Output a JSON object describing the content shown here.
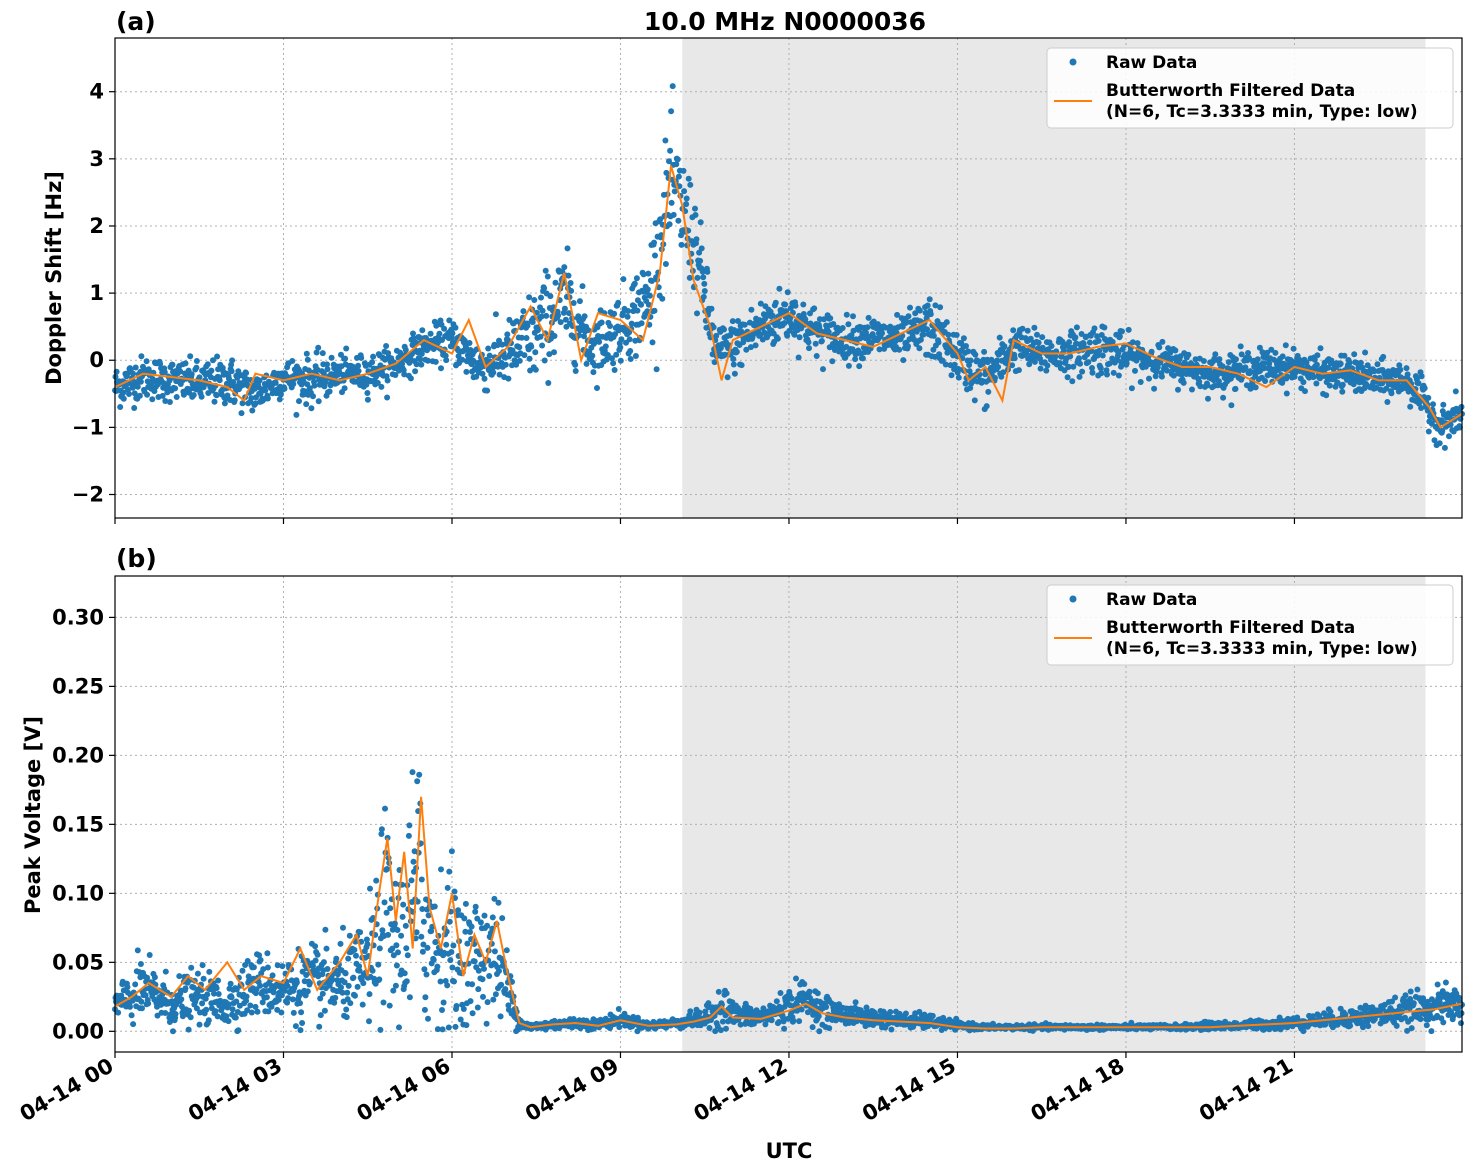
{
  "figure": {
    "title": "10.0 MHz N0000036",
    "xlabel": "UTC"
  },
  "legend": {
    "raw": "Raw Data",
    "filtered_line1": "Butterworth Filtered Data",
    "filtered_line2": "(N=6, Tc=3.3333 min, Type: low)"
  },
  "colors": {
    "raw": "#1f77b4",
    "filtered": "#ff7f0e",
    "shade": "#e8e8e8",
    "grid": "#b0b0b0"
  },
  "chart_data": [
    {
      "type": "scatter",
      "panel_label": "(a)",
      "title": "10.0 MHz N0000036",
      "xlabel": "",
      "ylabel": "Doppler Shift [Hz]",
      "xlim": [
        "04-14 00:00",
        "04-14 23:59"
      ],
      "ylim": [
        -2.35,
        4.8
      ],
      "yticks": [
        -2,
        -1,
        0,
        1,
        2,
        3,
        4
      ],
      "ytick_labels": [
        "−2",
        "−1",
        "0",
        "1",
        "2",
        "3",
        "4"
      ],
      "xticks": [
        "04-14 00",
        "04-14 03",
        "04-14 06",
        "04-14 09",
        "04-14 12",
        "04-14 15",
        "04-14 18",
        "04-14 21"
      ],
      "shaded_interval": [
        "04-14 10:06",
        "04-14 23:20"
      ],
      "grid": true,
      "legend_position": "upper right",
      "series": [
        {
          "name": "Raw Data",
          "style": "points",
          "x_hours": [
            0,
            0.5,
            1,
            1.5,
            2,
            2.5,
            3,
            3.5,
            4,
            4.5,
            5,
            5.5,
            6,
            6.5,
            7,
            7.5,
            8,
            8.5,
            9,
            9.5,
            9.9,
            10.3,
            10.7,
            11,
            11.5,
            12,
            12.5,
            13,
            13.5,
            14,
            14.5,
            15,
            15.5,
            16,
            16.5,
            17,
            17.5,
            18,
            18.5,
            19,
            19.5,
            20,
            20.5,
            21,
            21.5,
            22,
            22.5,
            23,
            23.3,
            23.6,
            23.98
          ],
          "y": [
            -0.4,
            -0.25,
            -0.3,
            -0.35,
            -0.3,
            -0.5,
            -0.25,
            -0.3,
            -0.2,
            -0.2,
            -0.05,
            0.2,
            0.3,
            -0.1,
            0.1,
            0.4,
            0.9,
            0.2,
            0.5,
            0.9,
            2.6,
            1.8,
            0.1,
            0.2,
            0.5,
            0.7,
            0.4,
            0.3,
            0.35,
            0.3,
            0.5,
            0.05,
            -0.3,
            0.2,
            0.1,
            0.1,
            0.2,
            0.05,
            0,
            -0.1,
            -0.2,
            -0.15,
            -0.1,
            -0.1,
            -0.2,
            -0.2,
            -0.3,
            -0.3,
            -0.6,
            -1,
            -0.8
          ],
          "spread": [
            0.35,
            0.35,
            0.35,
            0.35,
            0.4,
            0.35,
            0.3,
            0.4,
            0.3,
            0.3,
            0.3,
            0.3,
            0.35,
            0.4,
            0.5,
            0.8,
            0.8,
            0.5,
            0.6,
            0.8,
            1.1,
            0.9,
            0.45,
            0.45,
            0.45,
            0.45,
            0.4,
            0.35,
            0.35,
            0.35,
            0.5,
            0.4,
            0.45,
            0.35,
            0.35,
            0.35,
            0.45,
            0.35,
            0.3,
            0.3,
            0.3,
            0.3,
            0.3,
            0.3,
            0.3,
            0.3,
            0.3,
            0.3,
            0.3,
            0.3,
            0.3
          ]
        },
        {
          "name": "Butterworth Filtered Data",
          "style": "line",
          "x_hours": [
            0,
            0.5,
            1,
            1.5,
            2,
            2.3,
            2.5,
            3,
            3.5,
            4,
            4.5,
            5,
            5.5,
            6,
            6.3,
            6.6,
            7,
            7.4,
            7.7,
            8,
            8.3,
            8.6,
            9,
            9.4,
            9.7,
            9.9,
            10.1,
            10.3,
            10.6,
            10.8,
            11,
            11.5,
            12,
            12.5,
            13,
            13.5,
            14,
            14.5,
            15,
            15.2,
            15.5,
            15.8,
            16,
            16.5,
            17,
            17.5,
            18,
            18.5,
            19,
            19.5,
            20,
            20.5,
            21,
            21.5,
            22,
            22.5,
            23,
            23.2,
            23.4,
            23.6,
            23.98
          ],
          "y": [
            -0.4,
            -0.2,
            -0.25,
            -0.3,
            -0.4,
            -0.6,
            -0.2,
            -0.3,
            -0.2,
            -0.3,
            -0.2,
            -0.05,
            0.3,
            0.1,
            0.6,
            -0.1,
            0.2,
            0.8,
            0.3,
            1.3,
            0,
            0.7,
            0.6,
            0.3,
            1.3,
            2.9,
            2.3,
            1.2,
            0.5,
            -0.3,
            0.3,
            0.5,
            0.7,
            0.4,
            0.3,
            0.2,
            0.4,
            0.6,
            0.1,
            -0.3,
            -0.1,
            -0.6,
            0.3,
            0.1,
            0.1,
            0.2,
            0.25,
            0.05,
            -0.1,
            -0.1,
            -0.2,
            -0.4,
            -0.1,
            -0.2,
            -0.15,
            -0.3,
            -0.3,
            -0.5,
            -0.7,
            -1,
            -0.8
          ]
        }
      ]
    },
    {
      "type": "scatter",
      "panel_label": "(b)",
      "xlabel": "UTC",
      "ylabel": "Peak Voltage [V]",
      "xlim": [
        "04-14 00:00",
        "04-14 23:59"
      ],
      "ylim": [
        -0.015,
        0.33
      ],
      "yticks": [
        0,
        0.05,
        0.1,
        0.15,
        0.2,
        0.25,
        0.3
      ],
      "ytick_labels": [
        "0.00",
        "0.05",
        "0.10",
        "0.15",
        "0.20",
        "0.25",
        "0.30"
      ],
      "xticks": [
        "04-14 00",
        "04-14 03",
        "04-14 06",
        "04-14 09",
        "04-14 12",
        "04-14 15",
        "04-14 18",
        "04-14 21"
      ],
      "shaded_interval": [
        "04-14 10:06",
        "04-14 23:20"
      ],
      "grid": true,
      "legend_position": "upper right",
      "series": [
        {
          "name": "Raw Data",
          "style": "points",
          "x_hours": [
            0,
            0.5,
            1,
            1.5,
            2,
            2.5,
            3,
            3.5,
            4,
            4.3,
            4.6,
            4.8,
            5,
            5.2,
            5.4,
            5.6,
            5.8,
            6,
            6.2,
            6.4,
            6.6,
            6.8,
            7,
            7.2,
            7.4,
            7.8,
            8.2,
            8.6,
            9,
            9.5,
            10,
            10.3,
            10.6,
            10.8,
            11,
            11.5,
            12,
            12.3,
            12.6,
            13,
            13.5,
            14,
            14.5,
            15,
            15.5,
            16,
            16.5,
            17,
            17.5,
            18,
            18.5,
            19,
            19.5,
            20,
            20.5,
            21,
            21.5,
            22,
            22.5,
            23,
            23.5,
            23.98
          ],
          "y": [
            0.018,
            0.03,
            0.02,
            0.025,
            0.02,
            0.035,
            0.03,
            0.035,
            0.035,
            0.04,
            0.05,
            0.09,
            0.06,
            0.08,
            0.1,
            0.07,
            0.06,
            0.06,
            0.05,
            0.05,
            0.06,
            0.055,
            0.03,
            0.006,
            0.003,
            0.005,
            0.006,
            0.005,
            0.009,
            0.004,
            0.006,
            0.008,
            0.01,
            0.02,
            0.012,
            0.01,
            0.018,
            0.024,
            0.015,
            0.012,
            0.01,
            0.008,
            0.007,
            0.004,
            0.003,
            0.003,
            0.003,
            0.003,
            0.003,
            0.003,
            0.003,
            0.003,
            0.004,
            0.004,
            0.005,
            0.006,
            0.008,
            0.01,
            0.012,
            0.015,
            0.018,
            0.02
          ],
          "spread": [
            0.015,
            0.025,
            0.02,
            0.02,
            0.02,
            0.025,
            0.025,
            0.03,
            0.03,
            0.035,
            0.05,
            0.08,
            0.06,
            0.09,
            0.12,
            0.07,
            0.06,
            0.07,
            0.05,
            0.05,
            0.05,
            0.05,
            0.03,
            0.004,
            0.003,
            0.004,
            0.004,
            0.004,
            0.006,
            0.003,
            0.004,
            0.006,
            0.01,
            0.02,
            0.01,
            0.008,
            0.015,
            0.015,
            0.012,
            0.008,
            0.008,
            0.006,
            0.006,
            0.003,
            0.002,
            0.002,
            0.002,
            0.002,
            0.002,
            0.002,
            0.002,
            0.002,
            0.003,
            0.003,
            0.004,
            0.005,
            0.006,
            0.008,
            0.01,
            0.012,
            0.014,
            0.016
          ]
        },
        {
          "name": "Butterworth Filtered Data",
          "style": "line",
          "x_hours": [
            0,
            0.3,
            0.6,
            1,
            1.3,
            1.6,
            2,
            2.3,
            2.6,
            3,
            3.3,
            3.6,
            4,
            4.3,
            4.5,
            4.7,
            4.85,
            5,
            5.15,
            5.3,
            5.45,
            5.6,
            5.8,
            6,
            6.2,
            6.4,
            6.6,
            6.8,
            7,
            7.2,
            7.4,
            7.8,
            8.2,
            8.6,
            9,
            9.5,
            10,
            10.3,
            10.6,
            10.8,
            11,
            11.5,
            12,
            12.3,
            12.6,
            13,
            13.5,
            14,
            14.5,
            15,
            15.5,
            16,
            16.5,
            17,
            17.5,
            18,
            18.5,
            19,
            19.5,
            20,
            20.5,
            21,
            21.5,
            22,
            22.5,
            23,
            23.5,
            23.98
          ],
          "y": [
            0.018,
            0.025,
            0.035,
            0.025,
            0.04,
            0.03,
            0.05,
            0.03,
            0.04,
            0.035,
            0.06,
            0.03,
            0.05,
            0.07,
            0.04,
            0.1,
            0.14,
            0.08,
            0.13,
            0.06,
            0.17,
            0.09,
            0.06,
            0.1,
            0.04,
            0.07,
            0.05,
            0.08,
            0.04,
            0.006,
            0.003,
            0.005,
            0.006,
            0.004,
            0.008,
            0.004,
            0.005,
            0.007,
            0.01,
            0.018,
            0.01,
            0.009,
            0.015,
            0.02,
            0.013,
            0.01,
            0.008,
            0.007,
            0.006,
            0.003,
            0.002,
            0.002,
            0.003,
            0.003,
            0.003,
            0.003,
            0.003,
            0.003,
            0.003,
            0.004,
            0.005,
            0.006,
            0.008,
            0.01,
            0.012,
            0.014,
            0.016,
            0.02
          ]
        }
      ]
    }
  ]
}
